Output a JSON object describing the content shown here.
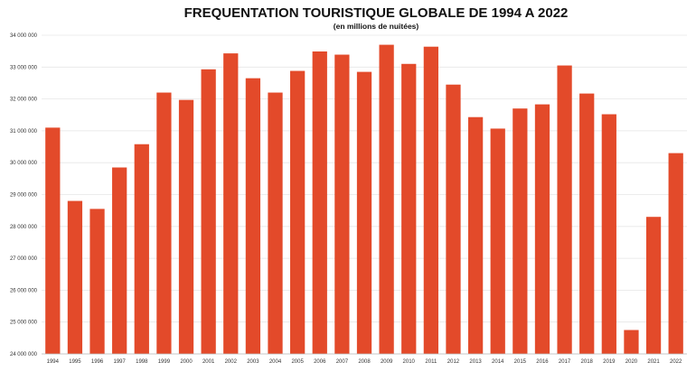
{
  "chart_data": {
    "type": "bar",
    "title": "FREQUENTATION TOURISTIQUE GLOBALE DE 1994 A 2022",
    "subtitle": "(en millions de nuitées)",
    "xlabel": "",
    "ylabel": "",
    "ylim": [
      24000000,
      34000000
    ],
    "grid": true,
    "y_ticks": [
      24000000,
      25000000,
      26000000,
      27000000,
      28000000,
      29000000,
      30000000,
      31000000,
      32000000,
      33000000,
      34000000
    ],
    "y_tick_labels": [
      "24 000 000",
      "25 000 000",
      "26 000 000",
      "27 000 000",
      "28 000 000",
      "29 000 000",
      "30 000 000",
      "31 000 000",
      "32 000 000",
      "33 000 000",
      "34 000 000"
    ],
    "categories": [
      "1994",
      "1995",
      "1996",
      "1997",
      "1998",
      "1999",
      "2000",
      "2001",
      "2002",
      "2003",
      "2004",
      "2005",
      "2006",
      "2007",
      "2008",
      "2009",
      "2010",
      "2011",
      "2012",
      "2013",
      "2014",
      "2015",
      "2016",
      "2017",
      "2018",
      "2019",
      "2020",
      "2021",
      "2022"
    ],
    "values": [
      31100000,
      28800000,
      28550000,
      29850000,
      30580000,
      32200000,
      31970000,
      32930000,
      33430000,
      32650000,
      32200000,
      32880000,
      33490000,
      33390000,
      32850000,
      33700000,
      33100000,
      33640000,
      32450000,
      31430000,
      31070000,
      31700000,
      31830000,
      33050000,
      32170000,
      31520000,
      24750000,
      28300000,
      30300000
    ],
    "bar_color": "#e34a2a",
    "grid_color": "#e6e6e6"
  }
}
